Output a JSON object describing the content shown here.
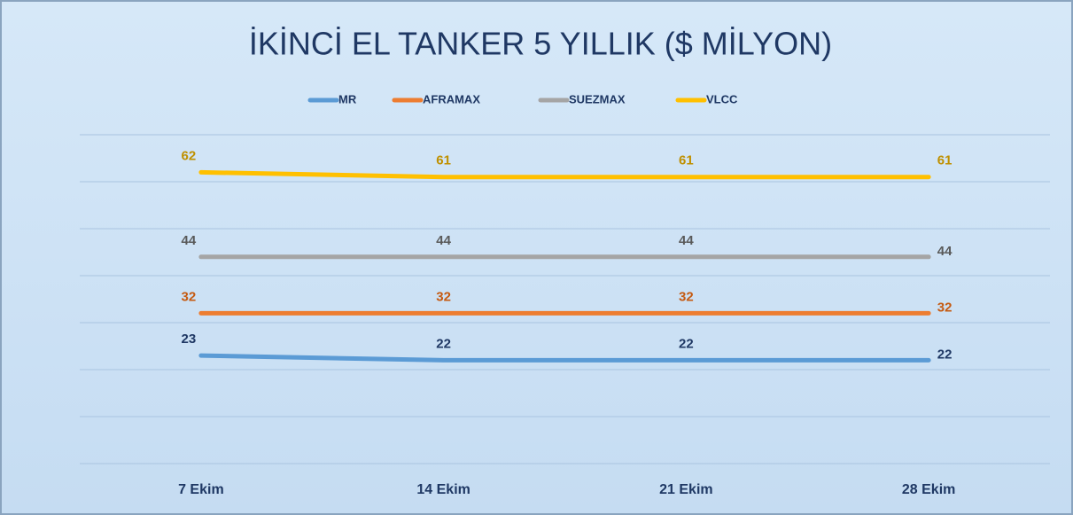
{
  "chart_data": {
    "type": "line",
    "title": "İKİNCİ EL TANKER 5 YILLIK ($ MİLYON)",
    "categories": [
      "7 Ekim",
      "14 Ekim",
      "21 Ekim",
      "28 Ekim"
    ],
    "series": [
      {
        "name": "MR",
        "color": "#5b9bd5",
        "values": [
          23,
          22,
          22,
          22
        ]
      },
      {
        "name": "AFRAMAX",
        "color": "#ed7d31",
        "values": [
          32,
          32,
          32,
          32
        ]
      },
      {
        "name": "SUEZMAX",
        "color": "#a5a5a5",
        "values": [
          44,
          44,
          44,
          44
        ]
      },
      {
        "name": "VLCC",
        "color": "#ffc000",
        "values": [
          62,
          61,
          61,
          61
        ]
      }
    ],
    "ylim": [
      0,
      70
    ],
    "yticks": [
      0,
      10,
      20,
      30,
      40,
      50,
      60,
      70
    ],
    "grid": true,
    "legend": "top"
  }
}
